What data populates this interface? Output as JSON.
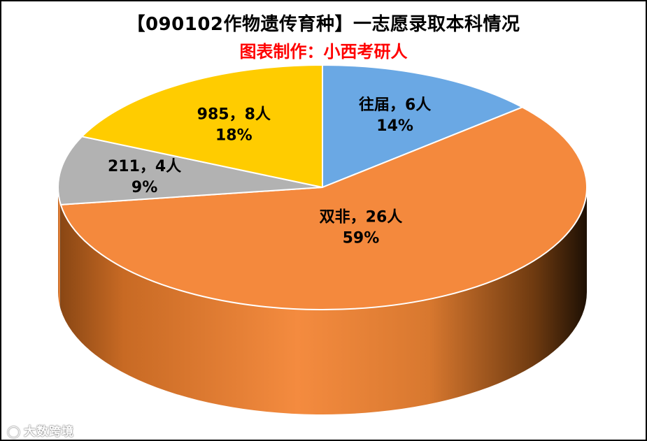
{
  "chart_data": {
    "type": "pie",
    "title": "【090102作物遗传育种】一志愿录取本科情况",
    "subtitle": "图表制作：小西考研人",
    "slices": [
      {
        "name": "往届",
        "value": 6,
        "percent": "14%",
        "color": "#6aa8e4",
        "label": "往届，6人"
      },
      {
        "name": "双非",
        "value": 26,
        "percent": "59%",
        "color": "#f4893d",
        "label": "双非，26人"
      },
      {
        "name": "211",
        "value": 4,
        "percent": "9%",
        "color": "#b2b2b2",
        "label": "211，4人"
      },
      {
        "name": "985",
        "value": 8,
        "percent": "18%",
        "color": "#ffcc00",
        "label": "985，8人"
      }
    ],
    "legend": "none"
  },
  "watermark": {
    "text": "大数跨境",
    "icon": "logo-icon"
  }
}
